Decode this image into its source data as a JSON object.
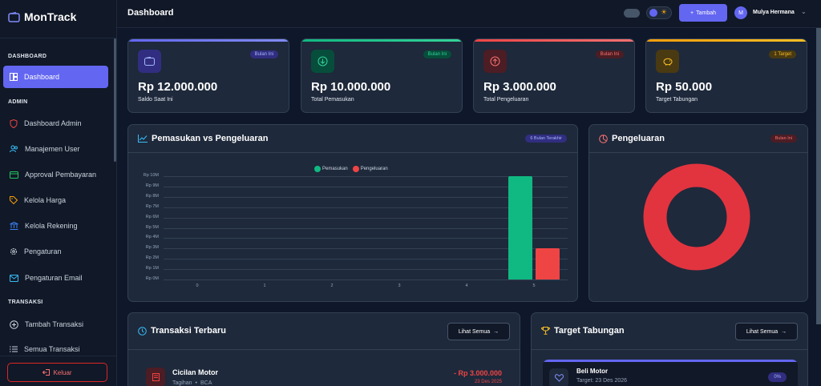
{
  "app": {
    "brand": "MonTrack"
  },
  "sidebar": {
    "section_dashboard": "DASHBOARD",
    "dashboard": "Dashboard",
    "section_admin": "ADMIN",
    "admin_items": [
      {
        "label": "Dashboard Admin",
        "icon": "shield-icon"
      },
      {
        "label": "Manajemen User",
        "icon": "users-icon"
      },
      {
        "label": "Approval Pembayaran",
        "icon": "credit-card-icon"
      },
      {
        "label": "Kelola Harga",
        "icon": "tag-icon"
      },
      {
        "label": "Kelola Rekening",
        "icon": "bank-icon"
      },
      {
        "label": "Pengaturan",
        "icon": "gear-icon"
      },
      {
        "label": "Pengaturan Email",
        "icon": "mail-icon"
      }
    ],
    "section_transaksi": "TRANSAKSI",
    "transaksi_items": [
      {
        "label": "Tambah Transaksi",
        "icon": "plus-circle-icon"
      },
      {
        "label": "Semua Transaksi",
        "icon": "list-icon"
      }
    ],
    "logout": "Keluar"
  },
  "topbar": {
    "title": "Dashboard",
    "add_label": "Tambah",
    "user_name": "Mulya Hermana",
    "avatar_initial": "M"
  },
  "cards": [
    {
      "value": "Rp 12.000.000",
      "label": "Saldo Saat Ini",
      "badge": "Bulan Ini",
      "color": "#6366f1"
    },
    {
      "value": "Rp 10.000.000",
      "label": "Total Pemasukan",
      "badge": "Bulan Ini",
      "color": "#10b981"
    },
    {
      "value": "Rp 3.000.000",
      "label": "Total Pengeluaran",
      "badge": "Bulan Ini",
      "color": "#ef4444"
    },
    {
      "value": "Rp 50.000",
      "label": "Target Tabungan",
      "badge": "1 Target",
      "color": "#f59e0b"
    }
  ],
  "income_panel": {
    "title": "Pemasukan vs Pengeluaran",
    "badge": "6 Bulan Terakhir"
  },
  "expense_panel": {
    "title": "Pengeluaran",
    "badge": "Bulan Ini"
  },
  "chart_data": [
    {
      "type": "bar",
      "categories": [
        "0",
        "1",
        "2",
        "3",
        "4",
        "5"
      ],
      "series": [
        {
          "name": "Pemasukan",
          "values": [
            0,
            0,
            0,
            0,
            0,
            10000000
          ],
          "color": "#10b981"
        },
        {
          "name": "Pengeluaran",
          "values": [
            0,
            0,
            0,
            0,
            0,
            3000000
          ],
          "color": "#ef4444"
        }
      ],
      "yticks": [
        "Rp 0M",
        "Rp 1M",
        "Rp 2M",
        "Rp 3M",
        "Rp 4M",
        "Rp 5M",
        "Rp 6M",
        "Rp 7M",
        "Rp 8M",
        "Rp 9M",
        "Rp 10M"
      ],
      "ylim": [
        0,
        10000000
      ],
      "legend": "top-center",
      "grid": true
    },
    {
      "type": "pie",
      "variant": "doughnut",
      "slices": [
        {
          "name": "",
          "value": 3000000,
          "color": "#e2343f"
        }
      ]
    }
  ],
  "recent": {
    "title": "Transaksi Terbaru",
    "see_all": "Lihat Semua",
    "items": [
      {
        "name": "Cicilan Motor",
        "category": "Tagihan",
        "account": "BCA",
        "amount": "- Rp 3.000.000",
        "date": "23 Des 2025"
      }
    ]
  },
  "savings": {
    "title": "Target Tabungan",
    "see_all": "Lihat Semua",
    "items": [
      {
        "name": "Beli Motor",
        "target_date": "Target: 23 Des 2026",
        "percent": "0%"
      }
    ]
  }
}
